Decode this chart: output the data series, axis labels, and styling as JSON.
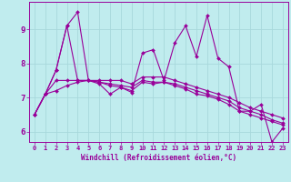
{
  "xlabel": "Windchill (Refroidissement éolien,°C)",
  "background_color": "#c0ecee",
  "line_color": "#990099",
  "grid_color": "#a8d8dc",
  "xlim": [
    -0.5,
    23.5
  ],
  "ylim": [
    5.7,
    9.8
  ],
  "xtick_labels": [
    "0",
    "1",
    "2",
    "3",
    "4",
    "5",
    "6",
    "7",
    "8",
    "9",
    "10",
    "11",
    "12",
    "13",
    "14",
    "15",
    "16",
    "17",
    "18",
    "19",
    "20",
    "21",
    "22",
    "23"
  ],
  "yticks": [
    6,
    7,
    8,
    9
  ],
  "series": [
    [
      6.5,
      7.1,
      7.8,
      9.1,
      9.5,
      7.5,
      7.4,
      7.1,
      7.3,
      7.15,
      8.3,
      8.4,
      7.5,
      8.6,
      9.1,
      8.2,
      9.4,
      8.15,
      7.9,
      6.6,
      6.6,
      6.8,
      5.7,
      6.1
    ],
    [
      6.5,
      7.1,
      7.8,
      9.1,
      7.5,
      7.5,
      7.5,
      7.5,
      7.5,
      7.4,
      7.6,
      7.6,
      7.6,
      7.5,
      7.4,
      7.3,
      7.2,
      7.1,
      7.0,
      6.85,
      6.7,
      6.6,
      6.5,
      6.4
    ],
    [
      6.5,
      7.1,
      7.5,
      7.5,
      7.5,
      7.5,
      7.45,
      7.4,
      7.35,
      7.3,
      7.5,
      7.45,
      7.45,
      7.4,
      7.3,
      7.2,
      7.1,
      7.0,
      6.9,
      6.7,
      6.6,
      6.5,
      6.35,
      6.25
    ],
    [
      6.5,
      7.1,
      7.2,
      7.35,
      7.45,
      7.5,
      7.45,
      7.35,
      7.3,
      7.2,
      7.45,
      7.4,
      7.45,
      7.35,
      7.25,
      7.1,
      7.05,
      6.95,
      6.8,
      6.6,
      6.5,
      6.4,
      6.3,
      6.2
    ]
  ]
}
